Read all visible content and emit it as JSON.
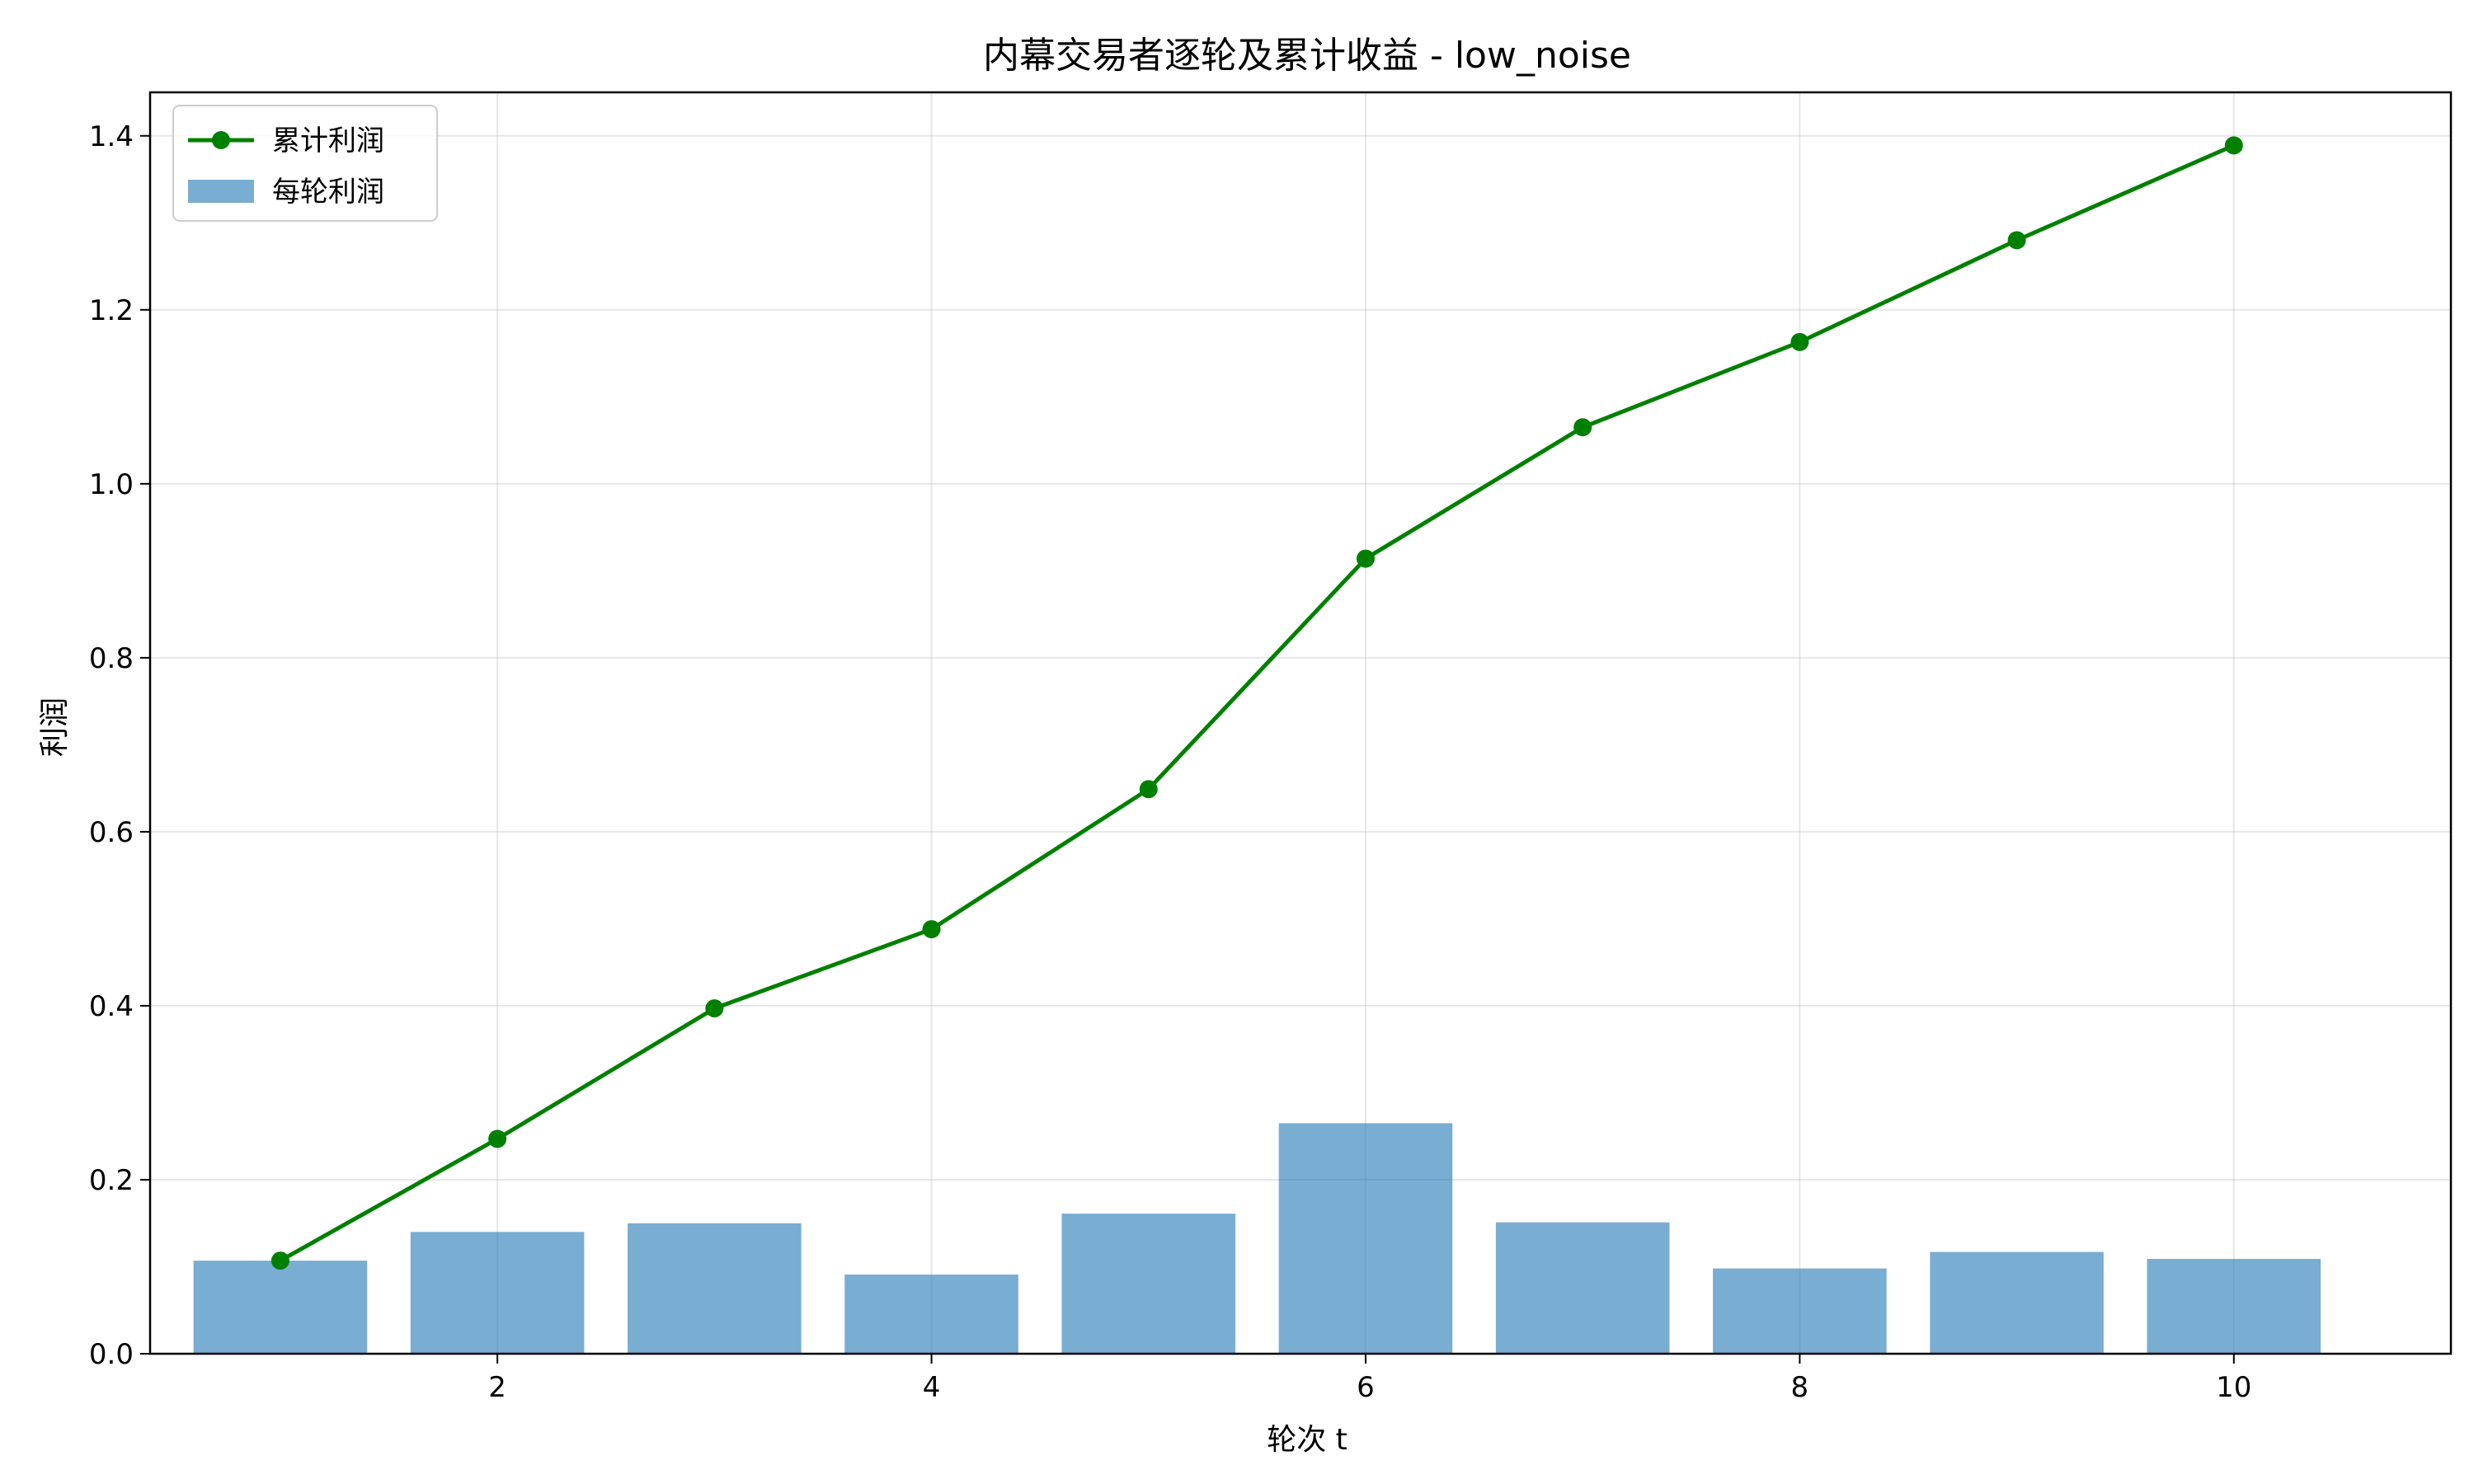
{
  "chart_data": {
    "type": "bar+line",
    "title": "内幕交易者逐轮及累计收益 - low_noise",
    "xlabel": "轮次 t",
    "ylabel": "利润",
    "xlim": [
      0.4,
      11.0
    ],
    "ylim": [
      0.0,
      1.45
    ],
    "xticks": [
      2,
      4,
      6,
      8,
      10
    ],
    "yticks": [
      0.0,
      0.2,
      0.4,
      0.6,
      0.8,
      1.0,
      1.2,
      1.4
    ],
    "grid": true,
    "legend_position": "top-left",
    "x": [
      1,
      2,
      3,
      4,
      5,
      6,
      7,
      8,
      9,
      10
    ],
    "series": [
      {
        "name": "累计利润",
        "kind": "line",
        "marker": "circle",
        "color": "#008000",
        "values": [
          0.107,
          0.247,
          0.397,
          0.488,
          0.649,
          0.914,
          1.065,
          1.163,
          1.28,
          1.389
        ]
      },
      {
        "name": "每轮利润",
        "kind": "bar",
        "color": "#1f77b4",
        "opacity": 0.6,
        "values": [
          0.107,
          0.14,
          0.15,
          0.091,
          0.161,
          0.265,
          0.151,
          0.098,
          0.117,
          0.109
        ]
      }
    ]
  }
}
